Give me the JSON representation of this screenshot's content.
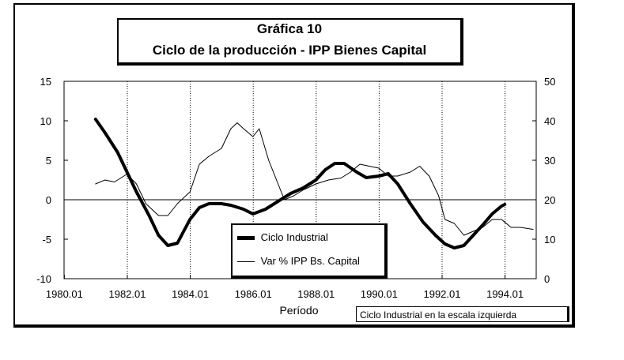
{
  "chart_data": {
    "type": "line",
    "title": "Gráfica 10",
    "subtitle": "Ciclo de la producción - IPP Bienes Capital",
    "xlabel": "Período",
    "x_ticks": [
      "1980.01",
      "1982.01",
      "1984.01",
      "1986.01",
      "1988.01",
      "1990.01",
      "1992.01",
      "1994.01"
    ],
    "x_range": [
      1980.0,
      1995.0
    ],
    "y_left": {
      "range": [
        -10,
        15
      ],
      "ticks": [
        15,
        10,
        5,
        0,
        -5,
        -10
      ]
    },
    "y_right": {
      "range": [
        0,
        50
      ],
      "ticks": [
        50,
        40,
        30,
        20,
        10,
        0
      ]
    },
    "grid_vertical": true,
    "legend_placement": "bottom-center",
    "note": "Ciclo Industrial en la escala izquierda",
    "series": [
      {
        "name": "Ciclo Industrial",
        "axis": "left",
        "style": "thick",
        "color": "#000000",
        "x": [
          1981.0,
          1981.3,
          1981.7,
          1982.0,
          1982.3,
          1982.7,
          1983.0,
          1983.3,
          1983.6,
          1983.8,
          1984.0,
          1984.3,
          1984.6,
          1985.0,
          1985.3,
          1985.7,
          1986.0,
          1986.4,
          1986.8,
          1987.2,
          1987.6,
          1988.0,
          1988.3,
          1988.6,
          1988.9,
          1989.3,
          1989.6,
          1990.0,
          1990.3,
          1990.6,
          1991.0,
          1991.4,
          1991.8,
          1992.1,
          1992.4,
          1992.7,
          1993.0,
          1993.3,
          1993.6,
          1993.9,
          1994.0
        ],
        "y": [
          10.2,
          8.5,
          6.0,
          3.5,
          1.0,
          -2.0,
          -4.5,
          -5.8,
          -5.5,
          -4.0,
          -2.5,
          -1.0,
          -0.5,
          -0.5,
          -0.7,
          -1.2,
          -1.8,
          -1.2,
          -0.2,
          0.8,
          1.5,
          2.5,
          3.8,
          4.6,
          4.6,
          3.5,
          2.8,
          3.0,
          3.3,
          2.0,
          -0.5,
          -2.8,
          -4.5,
          -5.6,
          -6.1,
          -5.8,
          -4.5,
          -3.2,
          -1.8,
          -0.8,
          -0.6
        ]
      },
      {
        "name": "Var % IPP Bs. Capital",
        "axis": "right",
        "style": "thin",
        "color": "#000000",
        "x": [
          1981.0,
          1981.3,
          1981.6,
          1982.0,
          1982.3,
          1982.6,
          1983.0,
          1983.3,
          1983.6,
          1984.0,
          1984.3,
          1984.6,
          1985.0,
          1985.3,
          1985.5,
          1985.7,
          1986.0,
          1986.2,
          1986.5,
          1986.8,
          1987.0,
          1987.3,
          1987.6,
          1988.0,
          1988.4,
          1988.8,
          1989.1,
          1989.4,
          1989.7,
          1990.0,
          1990.3,
          1990.6,
          1991.0,
          1991.3,
          1991.6,
          1991.9,
          1992.1,
          1992.4,
          1992.7,
          1993.0,
          1993.3,
          1993.6,
          1993.9,
          1994.2,
          1994.5,
          1994.9
        ],
        "y": [
          24.0,
          25.0,
          24.5,
          26.5,
          24.0,
          19.0,
          16.0,
          16.0,
          19.0,
          22.0,
          29.0,
          31.0,
          33.0,
          38.0,
          39.5,
          38.0,
          36.0,
          38.0,
          30.0,
          24.0,
          20.0,
          21.0,
          22.5,
          24.0,
          25.0,
          25.5,
          27.0,
          29.0,
          28.5,
          28.0,
          26.0,
          26.0,
          27.0,
          28.5,
          26.0,
          21.0,
          15.0,
          14.0,
          11.0,
          12.0,
          13.0,
          15.0,
          15.0,
          13.0,
          13.0,
          12.5
        ]
      }
    ]
  }
}
